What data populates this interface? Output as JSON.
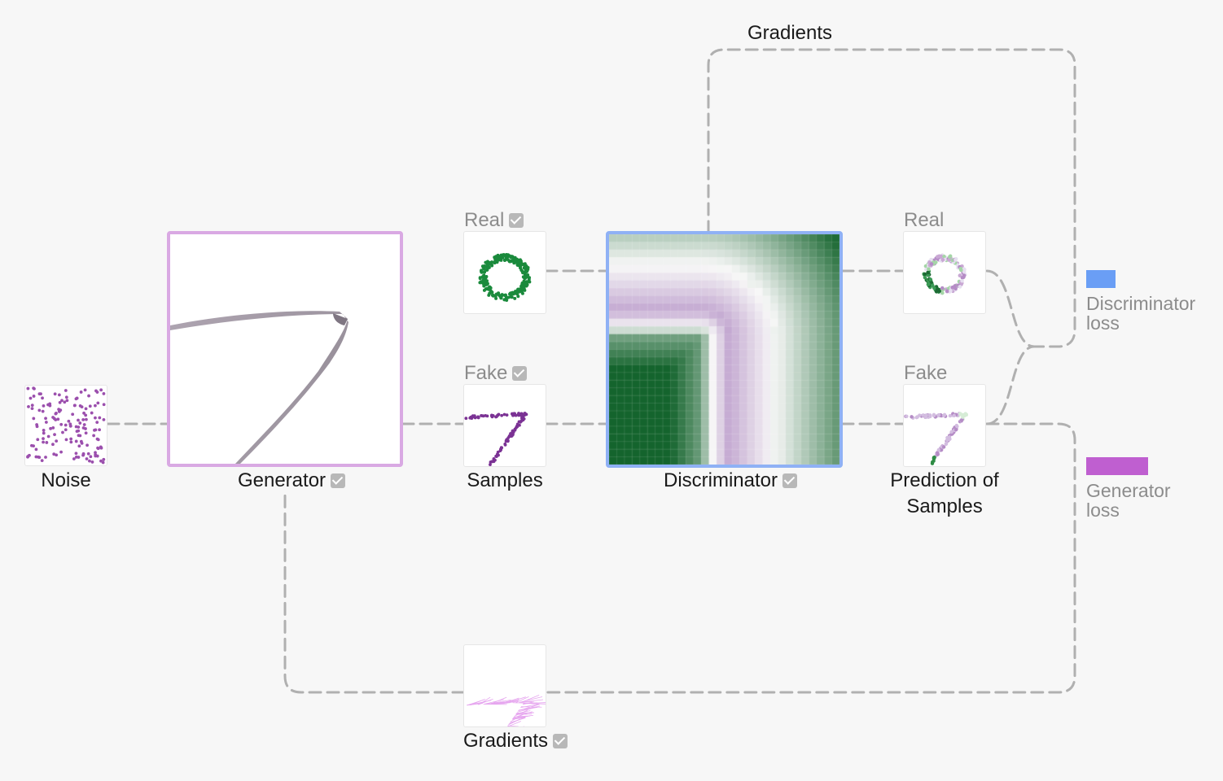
{
  "colors": {
    "wire": "#b0b0b0",
    "generator_border": "#d9a9e3",
    "discriminator_border": "#8fb1f5",
    "real_green": "#1a8a3c",
    "fake_purple": "#7b3294",
    "discriminator_loss": "#6a9ef5",
    "generator_loss": "#bf5fd0"
  },
  "icons": {
    "checkbox": "checkbox-checked-icon"
  },
  "labels": {
    "gradients_top": "Gradients",
    "noise": "Noise",
    "generator": "Generator",
    "samples_real": "Real",
    "samples_fake": "Fake",
    "samples": "Samples",
    "discriminator": "Discriminator",
    "prediction_real": "Real",
    "prediction_fake": "Fake",
    "prediction_line1": "Prediction of",
    "prediction_line2": "Samples",
    "gradients_bottom": "Gradients"
  },
  "legend": {
    "discriminator_loss_line1": "Discriminator",
    "discriminator_loss_line2": "loss",
    "generator_loss_line1": "Generator",
    "generator_loss_line2": "loss",
    "discriminator_loss_level": 0.48,
    "generator_loss_level": 1.0
  }
}
